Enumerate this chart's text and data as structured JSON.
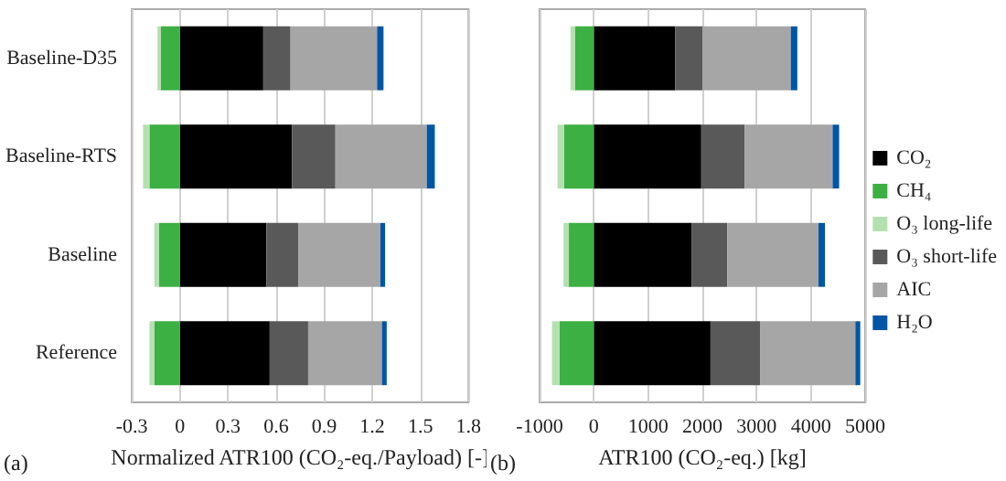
{
  "chart_data": [
    {
      "type": "bar",
      "orientation": "horizontal",
      "stacked": true,
      "categories": [
        "Baseline-D35",
        "Baseline-RTS",
        "Baseline",
        "Reference"
      ],
      "xlabel": "Normalized ATR100 (CO₂-eq./Payload) [-]",
      "xlim": [
        -0.3,
        1.8
      ],
      "xticks": [
        -0.3,
        0,
        0.3,
        0.6,
        0.9,
        1.2,
        1.5,
        1.8
      ],
      "grid": "x",
      "legend": false,
      "annotations": [
        "(a)"
      ],
      "series": [
        {
          "color": "#000000",
          "values": [
            0.52,
            0.7,
            0.54,
            0.56
          ]
        },
        {
          "color": "#3cb043",
          "values": [
            -0.12,
            -0.19,
            -0.13,
            -0.16
          ]
        },
        {
          "color": "#b5e0b0",
          "values": [
            -0.02,
            -0.04,
            -0.03,
            -0.03
          ]
        },
        {
          "color": "#595959",
          "values": [
            0.17,
            0.27,
            0.2,
            0.24
          ]
        },
        {
          "color": "#a6a6a6",
          "values": [
            0.54,
            0.57,
            0.51,
            0.46
          ]
        },
        {
          "color": "#0055a5",
          "values": [
            0.04,
            0.05,
            0.03,
            0.03
          ]
        }
      ]
    },
    {
      "type": "bar",
      "orientation": "horizontal",
      "stacked": true,
      "categories": [
        null,
        null,
        null,
        null
      ],
      "xlabel": "ATR100 (CO₂-eq.) [kg]",
      "xlim": [
        -1000,
        5000
      ],
      "xticks": [
        -1000,
        0,
        1000,
        2000,
        3000,
        4000,
        5000
      ],
      "grid": "x",
      "legend": "right",
      "annotations": [
        "(b)"
      ],
      "series": [
        {
          "name": "CO₂",
          "color": "#000000",
          "values": [
            1500,
            1980,
            1800,
            2150
          ]
        },
        {
          "name": "CH₄",
          "color": "#3cb043",
          "values": [
            -350,
            -550,
            -460,
            -630
          ]
        },
        {
          "name": "O₃ long-life",
          "color": "#b5e0b0",
          "values": [
            -80,
            -120,
            -100,
            -140
          ]
        },
        {
          "name": "O₃ short-life",
          "color": "#595959",
          "values": [
            500,
            800,
            660,
            920
          ]
        },
        {
          "name": "AIC",
          "color": "#a6a6a6",
          "values": [
            1630,
            1620,
            1680,
            1750
          ]
        },
        {
          "name": "H₂O",
          "color": "#0055a5",
          "values": [
            120,
            120,
            120,
            90
          ]
        }
      ]
    }
  ]
}
